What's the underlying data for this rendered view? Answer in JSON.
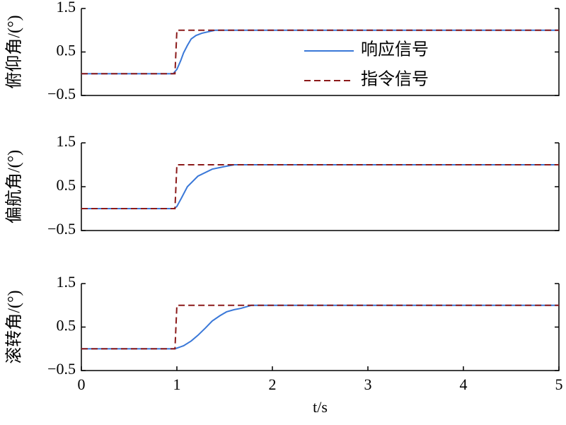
{
  "chart_data": [
    {
      "type": "line",
      "ylabel": "俯仰角/(°)",
      "xlim": [
        0,
        5
      ],
      "ylim": [
        -0.5,
        1.5
      ],
      "yticks": [
        {
          "value": -0.5,
          "label": "−0.5"
        },
        0.5,
        1.5
      ],
      "legend": "center",
      "series": [
        {
          "name": "响应信号",
          "color": "#3a78d8",
          "style": "solid",
          "x": [
            0,
            0.96,
            1.0,
            1.04,
            1.07,
            1.11,
            1.15,
            1.2,
            1.26,
            1.32,
            1.4,
            5
          ],
          "values": [
            0,
            0,
            0.1,
            0.3,
            0.48,
            0.65,
            0.8,
            0.88,
            0.93,
            0.96,
            1,
            1
          ]
        },
        {
          "name": "指令信号",
          "color": "#8b1a1a",
          "style": "dashed",
          "x": [
            0,
            0.98,
            1.0,
            5
          ],
          "values": [
            0,
            0,
            1,
            1
          ]
        }
      ]
    },
    {
      "type": "line",
      "ylabel": "偏航角/(°)",
      "xlim": [
        0,
        5
      ],
      "ylim": [
        -0.5,
        1.5
      ],
      "yticks": [
        {
          "value": -0.5,
          "label": "−0.5"
        },
        0.5,
        1.5
      ],
      "series": [
        {
          "color": "#3a78d8",
          "style": "solid",
          "x": [
            0,
            0.97,
            1.0,
            1.05,
            1.11,
            1.22,
            1.37,
            1.5,
            1.6,
            5
          ],
          "values": [
            0,
            0,
            0.05,
            0.25,
            0.5,
            0.74,
            0.9,
            0.96,
            1,
            1
          ]
        },
        {
          "color": "#8b1a1a",
          "style": "dashed",
          "x": [
            0,
            0.98,
            1.0,
            5
          ],
          "values": [
            0,
            0,
            1,
            1
          ]
        }
      ]
    },
    {
      "type": "line",
      "ylabel": "滚转角/(°)",
      "xlabel": "t/s",
      "xlim": [
        0,
        5
      ],
      "ylim": [
        -0.5,
        1.5
      ],
      "xticks": [
        0,
        1,
        2,
        3,
        4,
        5
      ],
      "yticks": [
        {
          "value": -0.5,
          "label": "−0.5"
        },
        0.5,
        1.5
      ],
      "series": [
        {
          "color": "#3a78d8",
          "style": "solid",
          "x": [
            0,
            0.98,
            1.07,
            1.15,
            1.22,
            1.3,
            1.37,
            1.45,
            1.52,
            1.6,
            1.67,
            1.78,
            5
          ],
          "values": [
            0,
            0,
            0.07,
            0.18,
            0.31,
            0.48,
            0.64,
            0.76,
            0.85,
            0.9,
            0.93,
            1,
            1
          ]
        },
        {
          "color": "#8b1a1a",
          "style": "dashed",
          "x": [
            0,
            0.98,
            1.0,
            5
          ],
          "values": [
            0,
            0,
            1,
            1
          ]
        }
      ]
    }
  ]
}
